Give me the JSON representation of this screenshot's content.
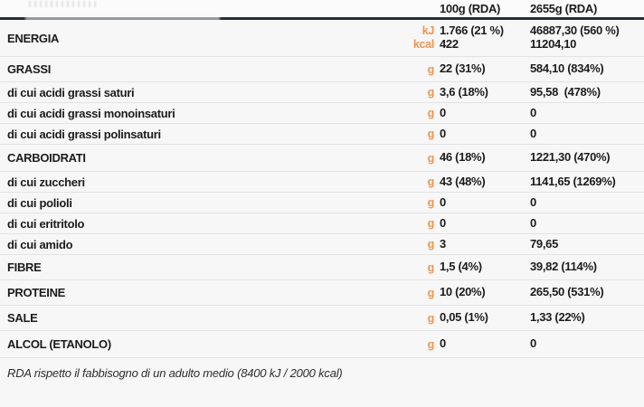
{
  "header": {
    "col_100g": "100g (RDA)",
    "col_2655g": "2655g (RDA)"
  },
  "rows": [
    {
      "label": "ENERGIA",
      "units": [
        "kJ",
        "kcal"
      ],
      "v100": [
        "1.766 (21 %)",
        "422"
      ],
      "v2655": [
        "46887,30 (560 %)",
        "11204,10"
      ]
    },
    {
      "label": "GRASSI",
      "unit": "g",
      "v100": "22 (31%)",
      "v2655": "584,10 (834%)"
    },
    {
      "label": "di cui acidi grassi saturi",
      "unit": "g",
      "v100": "3,6 (18%)",
      "v2655": "95,58  (478%)"
    },
    {
      "label": "di cui acidi grassi monoinsaturi",
      "unit": "g",
      "v100": "0",
      "v2655": "0"
    },
    {
      "label": "di cui acidi grassi polinsaturi",
      "unit": "g",
      "v100": "0",
      "v2655": "0"
    },
    {
      "label": "CARBOIDRATI",
      "unit": "g",
      "v100": "46 (18%)",
      "v2655": "1221,30 (470%)"
    },
    {
      "label": "di cui zuccheri",
      "unit": "g",
      "v100": "43 (48%)",
      "v2655": "1141,65 (1269%)"
    },
    {
      "label": "di cui polioli",
      "unit": "g",
      "v100": "0",
      "v2655": "0"
    },
    {
      "label": "di cui eritritolo",
      "unit": "g",
      "v100": "0",
      "v2655": "0"
    },
    {
      "label": "di cui amido",
      "unit": "g",
      "v100": "3",
      "v2655": "79,65"
    },
    {
      "label": "FIBRE",
      "unit": "g",
      "v100": "1,5 (4%)",
      "v2655": "39,82 (114%)"
    },
    {
      "label": "PROTEINE",
      "unit": "g",
      "v100": "10 (20%)",
      "v2655": "265,50 (531%)"
    },
    {
      "label": "SALE",
      "unit": "g",
      "v100": "0,05 (1%)",
      "v2655": "1,33 (22%)"
    },
    {
      "label": "ALCOL (ETANOLO)",
      "unit": "g",
      "v100": "0",
      "v2655": "0"
    }
  ],
  "footer": {
    "note": "RDA rispetto il fabbisogno di un adulto medio (8400 kJ / 2000 kcal)"
  },
  "colors": {
    "accent_orange": "#F2944F",
    "header_rule": "#22303B",
    "row_divider": "#E3E3E3",
    "text": "#1C1C1C",
    "background": "#F7F7F7"
  }
}
